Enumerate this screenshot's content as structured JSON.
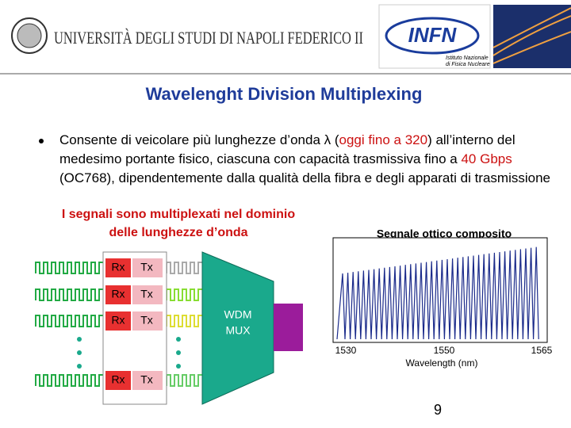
{
  "header": {
    "university": "UNIVERSITÀ DEGLI STUDI DI NAPOLI FEDERICO II",
    "institute": "INFN",
    "institute_full": [
      "Istituto Nazionale",
      "di Fisica Nucleare"
    ]
  },
  "title": "Wavelenght Division Multiplexing",
  "bullet": [
    "Consente di veicolare più lunghezze d’onda λ (",
    "oggi fino a 320",
    ") all’interno del medesimo portante fisico, ciascuna con capacità trasmissiva fino a ",
    "40 Gbps",
    " (OC768), dipendentemente dalla qualità della fibra e degli apparati di trasmissione"
  ],
  "note": [
    "I segnali sono multiplexati nel dominio",
    "delle lunghezze d’onda"
  ],
  "diagram": {
    "rows": [
      {
        "rx": "Rx",
        "tx": "Tx"
      },
      {
        "rx": "Rx",
        "tx": "Tx"
      },
      {
        "rx": "Rx",
        "tx": "Tx"
      },
      {
        "rx": "Rx",
        "tx": "Tx"
      }
    ],
    "mux": [
      "WDM",
      "MUX"
    ]
  },
  "spectrum": {
    "title": "Segnale ottico composito",
    "ticks": [
      "1530",
      "1550",
      "1565"
    ],
    "xlabel": "Wavelength (nm)"
  },
  "page_number": "9"
}
